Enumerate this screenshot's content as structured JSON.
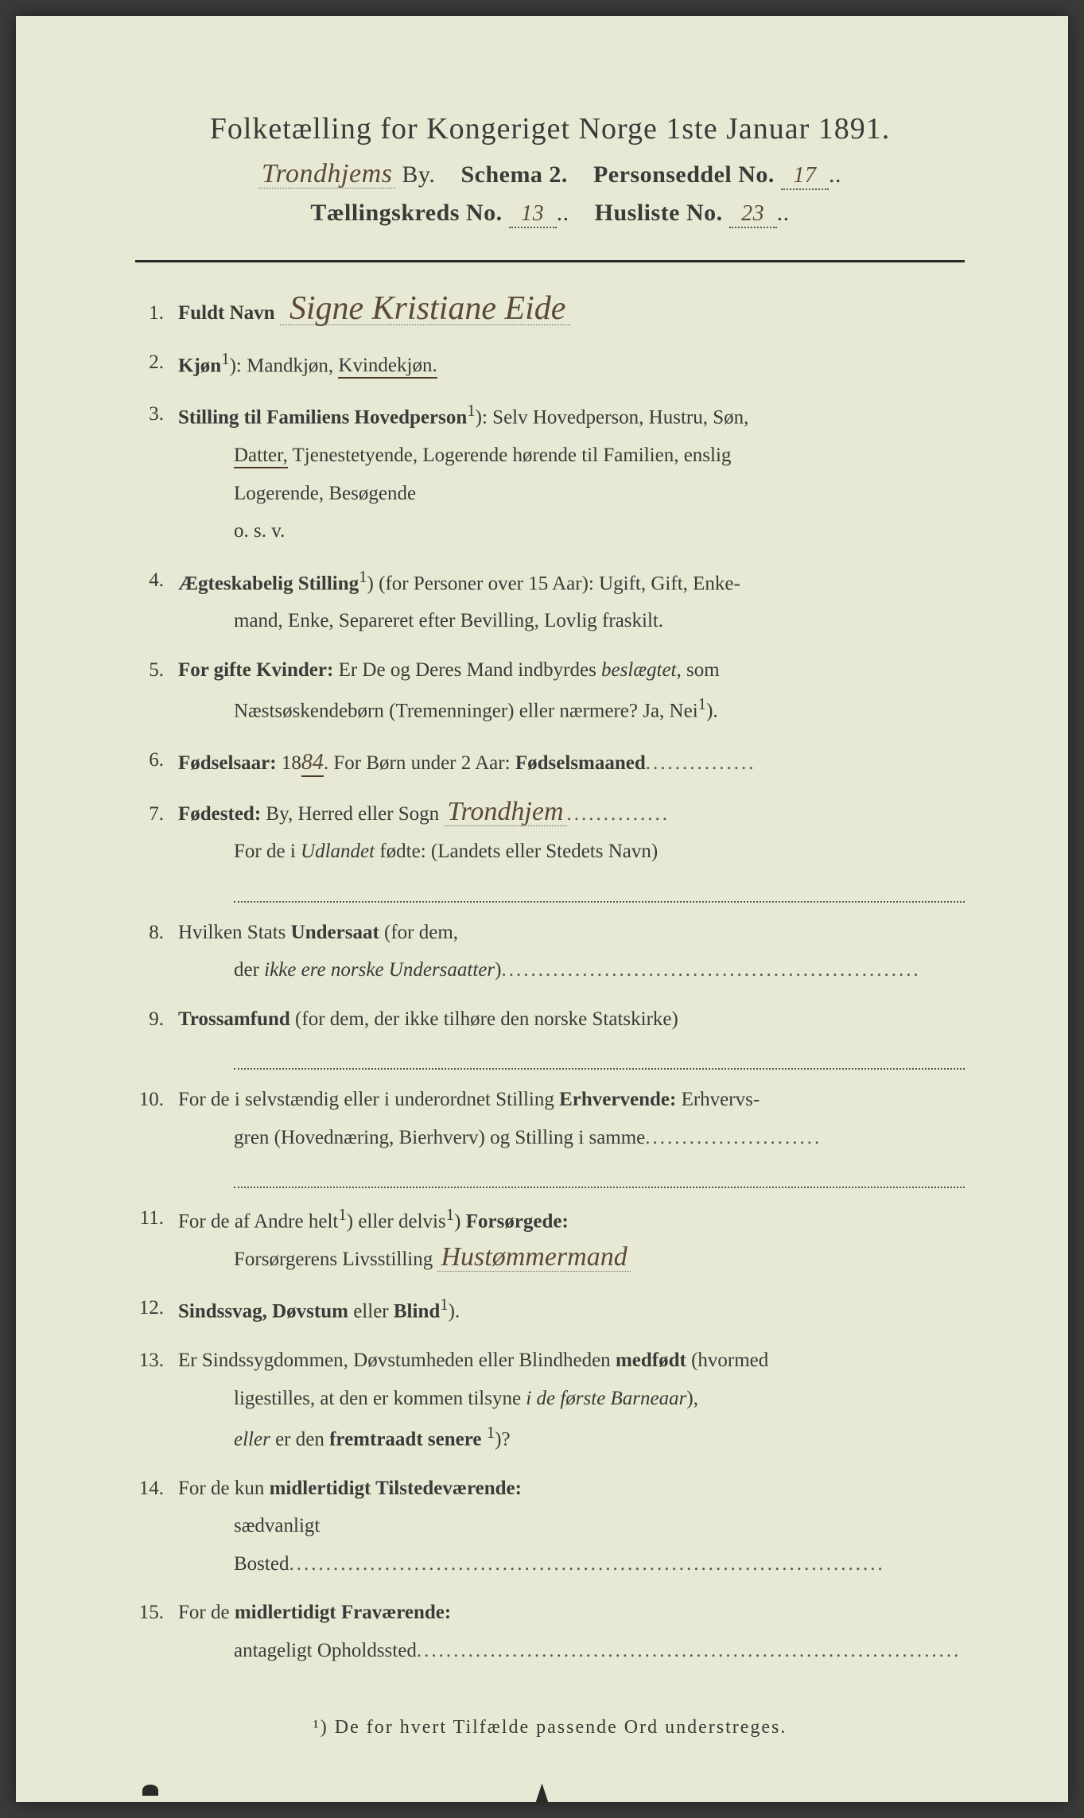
{
  "header": {
    "title": "Folketælling for Kongeriget Norge 1ste Januar 1891.",
    "city_hand": "Trondhjems",
    "city_suffix": "By.",
    "schema": "Schema 2.",
    "personseddel": "Personseddel No.",
    "personseddel_no": "17",
    "tkreds": "Tællingskreds No.",
    "tkreds_no": "13",
    "husliste": "Husliste No.",
    "husliste_no": "23"
  },
  "items": {
    "1": {
      "label": "Fuldt Navn",
      "value": "Signe Kristiane Eide"
    },
    "2": {
      "label": "Kjøn",
      "sup": "1",
      "tail": "): Mandkjøn, ",
      "underlined": "Kvindekjøn."
    },
    "3": {
      "label": "Stilling til Familiens Hovedperson",
      "sup": "1",
      "tail": "): Selv Hovedperson, Hustru, Søn,",
      "line2a": "Datter,",
      "line2b": " Tjenestetyende, Logerende hørende til Familien, enslig",
      "line3": "Logerende, Besøgende",
      "line4": "o. s. v."
    },
    "4": {
      "label": "Ægteskabelig Stilling",
      "sup": "1",
      "tail": ") (for Personer over 15 Aar): Ugift, Gift, Enke-",
      "line2": "mand, Enke, Separeret efter Bevilling, Lovlig fraskilt."
    },
    "5": {
      "label": "For gifte Kvinder:",
      "tail": " Er De og Deres Mand indbyrdes ",
      "ital": "beslægtet,",
      "tail2": " som",
      "line2": "Næstsøskendebørn (Tremenninger) eller nærmere?  Ja, Nei",
      "sup": "1",
      "end": ")."
    },
    "6": {
      "label": "Fødselsaar:",
      "prefix": " 18",
      "year": "84",
      "mid": ".   For Børn under 2 Aar: ",
      "label2": "Fødselsmaaned",
      "dots": "..............."
    },
    "7": {
      "label": "Fødested:",
      "tail": " By, Herred eller Sogn ",
      "value": "Trondhjem",
      "dots": "..............",
      "line2a": "For de i ",
      "line2ital": "Udlandet",
      "line2b": " fødte: (Landets eller Stedets Navn)"
    },
    "8": {
      "line1": "Hvilken Stats ",
      "bold": "Undersaat",
      "tail": " (for dem,",
      "line2": "der ",
      "ital": "ikke ere norske Undersaatter",
      "end": ")",
      "dots": "........................................................."
    },
    "9": {
      "label": "Trossamfund",
      "tail": " (for dem, der ikke tilhøre den norske Statskirke)"
    },
    "10": {
      "line1": "For de i selvstændig eller i underordnet Stilling ",
      "bold": "Erhvervende:",
      "tail": " Erhvervs-",
      "line2": "gren (Hovednæring, Bierhverv) og Stilling i samme",
      "dots": "........................"
    },
    "11": {
      "line1": "For de af Andre helt",
      "sup1": "1",
      "mid": ") eller delvis",
      "sup2": "1",
      "tail": ") ",
      "bold": "Forsørgede:",
      "line2": "Forsørgerens Livsstilling ",
      "value": "Hustømmermand"
    },
    "12": {
      "label": "Sindssvag, Døvstum",
      "tail": " eller ",
      "label2": "Blind",
      "sup": "1",
      "end": ")."
    },
    "13": {
      "line1": "Er Sindssygdommen, Døvstumheden eller Blindheden ",
      "bold": "medfødt",
      "tail": " (hvormed",
      "line2a": "ligestilles, at den er kommen tilsyne ",
      "ital": "i de første Barneaar",
      "line2b": "),",
      "line3a": "eller",
      "line3b": " er den ",
      "bold2": "fremtraadt senere",
      "sup": "1",
      "end": ")?"
    },
    "14": {
      "line1": "For de kun ",
      "bold": "midlertidigt Tilstedeværende:",
      "line2": "sædvanligt Bosted",
      "dots": "................................................................................."
    },
    "15": {
      "line1": "For de ",
      "bold": "midlertidigt Fraværende:",
      "line2": "antageligt Opholdssted",
      "dots": ".........................................................................."
    }
  },
  "footnote": "¹) De for hvert Tilfælde passende Ord understreges."
}
